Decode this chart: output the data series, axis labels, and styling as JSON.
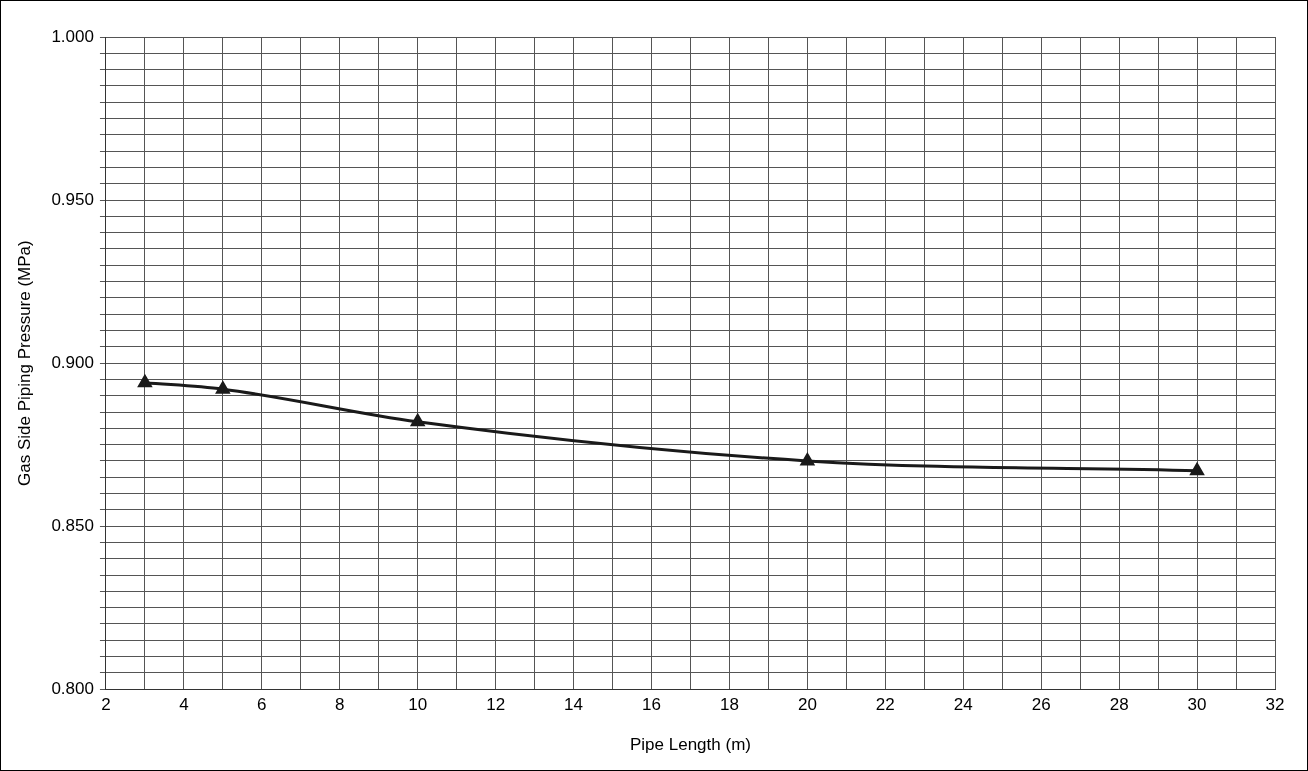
{
  "chart_data": {
    "type": "line",
    "xlabel": "Pipe Length (m)",
    "ylabel": "Gas Side Piping Pressure (MPa)",
    "x": [
      3,
      5,
      10,
      20,
      30
    ],
    "series": [
      {
        "color": "#1a1a1a",
        "values": [
          0.894,
          0.892,
          0.882,
          0.87,
          0.867
        ]
      }
    ],
    "xlim": [
      2,
      32
    ],
    "xticks": [
      2,
      {
        "value": 3,
        "label": null
      },
      4,
      {
        "value": 5,
        "label": null
      },
      6,
      {
        "value": 7,
        "label": null
      },
      8,
      {
        "value": 9,
        "label": null
      },
      10,
      {
        "value": 11,
        "label": null
      },
      12,
      {
        "value": 13,
        "label": null
      },
      14,
      {
        "value": 15,
        "label": null
      },
      16,
      {
        "value": 17,
        "label": null
      },
      18,
      {
        "value": 19,
        "label": null
      },
      20,
      {
        "value": 21,
        "label": null
      },
      22,
      {
        "value": 23,
        "label": null
      },
      24,
      {
        "value": 25,
        "label": null
      },
      26,
      {
        "value": 27,
        "label": null
      },
      28,
      {
        "value": 29,
        "label": null
      },
      30,
      {
        "value": 31,
        "label": null
      },
      32
    ],
    "ylim": [
      0.8,
      1.0
    ],
    "yticks": [
      {
        "value": 0.8,
        "label": "0.800"
      },
      {
        "value": 0.805,
        "label": null
      },
      {
        "value": 0.81,
        "label": null
      },
      {
        "value": 0.815,
        "label": null
      },
      {
        "value": 0.82,
        "label": null
      },
      {
        "value": 0.825,
        "label": null
      },
      {
        "value": 0.83,
        "label": null
      },
      {
        "value": 0.835,
        "label": null
      },
      {
        "value": 0.84,
        "label": null
      },
      {
        "value": 0.845,
        "label": null
      },
      {
        "value": 0.85,
        "label": "0.850"
      },
      {
        "value": 0.855,
        "label": null
      },
      {
        "value": 0.86,
        "label": null
      },
      {
        "value": 0.865,
        "label": null
      },
      {
        "value": 0.87,
        "label": null
      },
      {
        "value": 0.875,
        "label": null
      },
      {
        "value": 0.88,
        "label": null
      },
      {
        "value": 0.885,
        "label": null
      },
      {
        "value": 0.89,
        "label": null
      },
      {
        "value": 0.895,
        "label": null
      },
      {
        "value": 0.9,
        "label": "0.900"
      },
      {
        "value": 0.905,
        "label": null
      },
      {
        "value": 0.91,
        "label": null
      },
      {
        "value": 0.915,
        "label": null
      },
      {
        "value": 0.92,
        "label": null
      },
      {
        "value": 0.925,
        "label": null
      },
      {
        "value": 0.93,
        "label": null
      },
      {
        "value": 0.935,
        "label": null
      },
      {
        "value": 0.94,
        "label": null
      },
      {
        "value": 0.945,
        "label": null
      },
      {
        "value": 0.95,
        "label": "0.950"
      },
      {
        "value": 0.955,
        "label": null
      },
      {
        "value": 0.96,
        "label": null
      },
      {
        "value": 0.965,
        "label": null
      },
      {
        "value": 0.97,
        "label": null
      },
      {
        "value": 0.975,
        "label": null
      },
      {
        "value": 0.98,
        "label": null
      },
      {
        "value": 0.985,
        "label": null
      },
      {
        "value": 0.99,
        "label": null
      },
      {
        "value": 0.995,
        "label": null
      },
      {
        "value": 1.0,
        "label": "1.000"
      }
    ],
    "grid": true,
    "legend": false,
    "marker": "triangle",
    "line_style": "solid"
  }
}
